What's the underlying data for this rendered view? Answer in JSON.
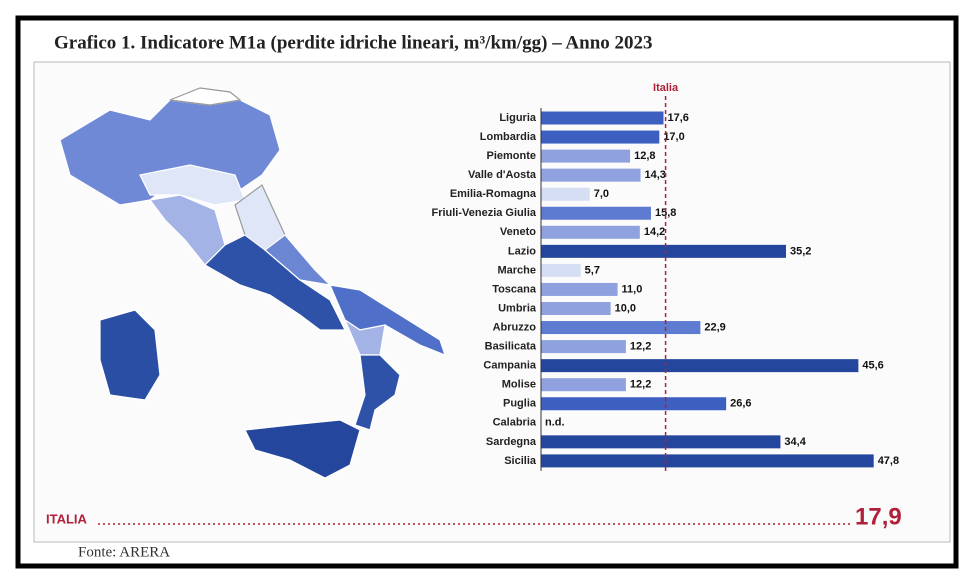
{
  "chart_data": {
    "type": "bar",
    "orientation": "horizontal",
    "title": "Grafico 1. Indicatore M1a (perdite idriche lineari, m³/km/gg) – Anno 2023",
    "source": "Fonte: ARERA",
    "categories": [
      "Liguria",
      "Lombardia",
      "Piemonte",
      "Valle d'Aosta",
      "Emilia-Romagna",
      "Friuli-Venezia Giulia",
      "Veneto",
      "Lazio",
      "Marche",
      "Toscana",
      "Umbria",
      "Abruzzo",
      "Basilicata",
      "Campania",
      "Molise",
      "Puglia",
      "Calabria",
      "Sardegna",
      "Sicilia"
    ],
    "values": [
      17.6,
      17.0,
      12.8,
      14.3,
      7.0,
      15.8,
      14.2,
      35.2,
      5.7,
      11.0,
      10.0,
      22.9,
      12.2,
      45.6,
      12.2,
      26.6,
      null,
      34.4,
      47.8
    ],
    "value_labels": [
      "17,6",
      "17,0",
      "12,8",
      "14,3",
      "7,0",
      "15,8",
      "14,2",
      "35,2",
      "5,7",
      "11,0",
      "10,0",
      "22,9",
      "12,2",
      "45,6",
      "12,2",
      "26,6",
      "n.d.",
      "34,4",
      "47,8"
    ],
    "colors": [
      "#3d5fc0",
      "#3d5fc0",
      "#8fa2df",
      "#8fa2df",
      "#d6def4",
      "#5d7bd0",
      "#8fa2df",
      "#24469c",
      "#d6def4",
      "#8fa2df",
      "#8fa2df",
      "#5d7bd0",
      "#8fa2df",
      "#24469c",
      "#8fa2df",
      "#3d5fc0",
      "#ffffff",
      "#24469c",
      "#24469c"
    ],
    "xlim": [
      0,
      50
    ],
    "reference": {
      "label": "Italia",
      "value": 17.9,
      "color": "#b0203a"
    },
    "total": {
      "label": "ITALIA",
      "value": 17.9,
      "value_label": "17,9"
    }
  }
}
